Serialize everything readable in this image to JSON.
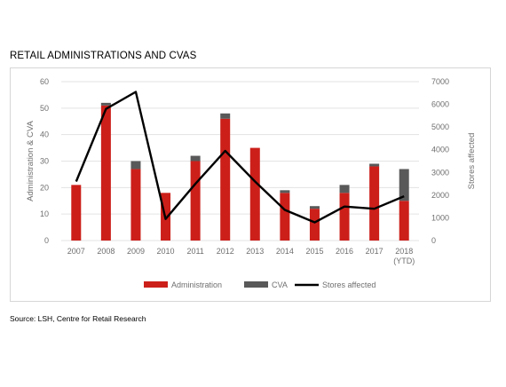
{
  "title": "RETAIL ADMINISTRATIONS AND CVAS",
  "source": "Source: LSH, Centre for Retail Research",
  "colors": {
    "administration": "#cc1f1a",
    "cva": "#595959",
    "stores_line": "#000000",
    "grid": "#e3e3e3",
    "axis_text": "#6f6f6f"
  },
  "chart_data": {
    "type": "bar",
    "title": "",
    "categories": [
      "2007",
      "2008",
      "2009",
      "2010",
      "2011",
      "2012",
      "2013",
      "2014",
      "2015",
      "2016",
      "2017",
      "2018"
    ],
    "category_sublabels": [
      "",
      "",
      "",
      "",
      "",
      "",
      "",
      "",
      "",
      "",
      "",
      "(YTD)"
    ],
    "series": [
      {
        "name": "Administration",
        "type": "bar",
        "stack": "main",
        "axis": "left",
        "values": [
          21,
          51,
          27,
          18,
          30,
          46,
          35,
          18,
          12,
          18,
          28,
          15
        ]
      },
      {
        "name": "CVA",
        "type": "bar",
        "stack": "main",
        "axis": "left",
        "values": [
          0,
          1,
          3,
          0,
          2,
          2,
          0,
          1,
          1,
          3,
          1,
          12
        ]
      },
      {
        "name": "Stores affected",
        "type": "line",
        "axis": "right",
        "values": [
          2600,
          5800,
          6550,
          950,
          2500,
          3950,
          2600,
          1350,
          800,
          1500,
          1400,
          1950
        ]
      }
    ],
    "ylabel": "Administration & CVA",
    "y2label": "Stores affected",
    "ylim": [
      0,
      60
    ],
    "yticks": [
      0,
      10,
      20,
      30,
      40,
      50,
      60
    ],
    "y2lim": [
      0,
      7000
    ],
    "y2ticks": [
      0,
      1000,
      2000,
      3000,
      4000,
      5000,
      6000,
      7000
    ],
    "grid": true,
    "legend_position": "bottom"
  }
}
